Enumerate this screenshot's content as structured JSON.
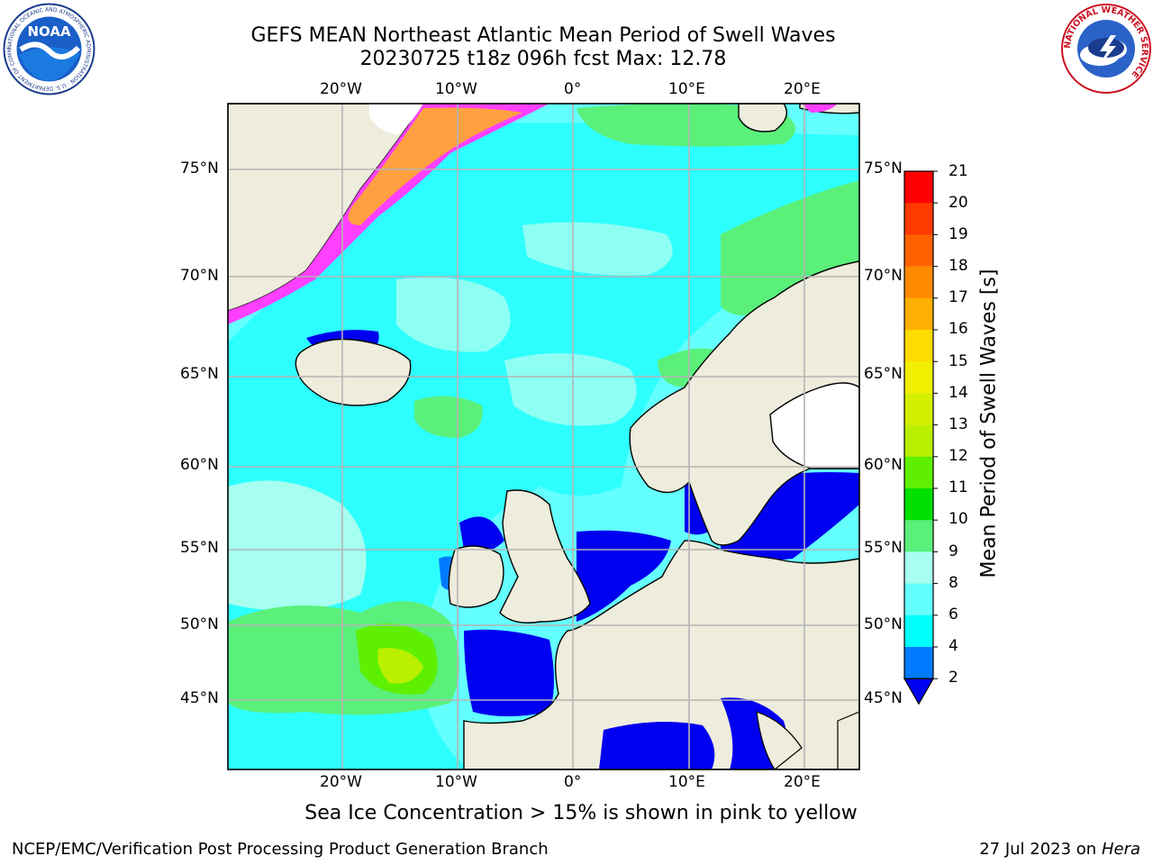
{
  "header": {
    "title_line1": "GEFS MEAN Northeast Atlantic Mean Period of Swell Waves",
    "title_line2": "20230725 t18z 096h fcst   Max: 12.78"
  },
  "logos": {
    "left_text": "NOAA",
    "left_ring_text": "NATIONAL OCEANIC AND ATMOSPHERIC ADMINISTRATION · U.S. DEPARTMENT OF COMMERCE",
    "right_ring_text": "NATIONAL WEATHER SERVICE"
  },
  "map": {
    "lon_ticks_top": [
      "20°W",
      "10°W",
      "0°",
      "10°E",
      "20°E"
    ],
    "lon_ticks_bottom": [
      "20°W",
      "10°W",
      "0°",
      "10°E",
      "20°E"
    ],
    "lat_ticks_left": [
      "75°N",
      "70°N",
      "65°N",
      "60°N",
      "55°N",
      "50°N",
      "45°N"
    ],
    "lat_ticks_right": [
      "75°N",
      "70°N",
      "65°N",
      "60°N",
      "55°N",
      "50°N",
      "45°N"
    ],
    "colors": {
      "land": "#eeecdc",
      "grid": "#b4b4b4",
      "ice_pink": "#ff40ff",
      "ice_orange": "#ffa040",
      "ice_white": "#ffffff"
    }
  },
  "colorbar": {
    "label": "Mean Period of Swell Waves [s]",
    "ticks": [
      "21",
      "20",
      "19",
      "18",
      "17",
      "16",
      "15",
      "14",
      "13",
      "12",
      "11",
      "10",
      "9",
      "8",
      "6",
      "4",
      "2"
    ],
    "colors": [
      "#ff0000",
      "#ff3a00",
      "#ff6200",
      "#ff8a00",
      "#ffb000",
      "#ffdc00",
      "#f0f000",
      "#d4f000",
      "#b8f000",
      "#5ef000",
      "#00e000",
      "#5af07a",
      "#a6fff0",
      "#64ffff",
      "#00ffff",
      "#007bff",
      "#0000f0"
    ]
  },
  "notes": {
    "sea_ice_note": "Sea Ice Concentration > 15% is shown in pink to yellow"
  },
  "footer": {
    "left": "NCEP/EMC/Verification Post Processing Product Generation Branch",
    "right_date": "27 Jul 2023 on ",
    "right_machine": "Hera"
  }
}
